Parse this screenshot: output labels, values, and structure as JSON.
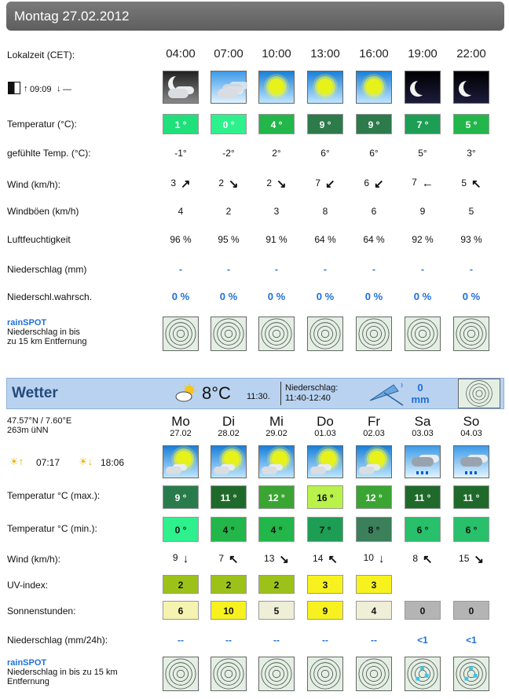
{
  "header": {
    "title": "Montag 27.02.2012"
  },
  "hourly": {
    "time_label": "Lokalzeit (CET):",
    "times": [
      "04:00",
      "07:00",
      "10:00",
      "13:00",
      "16:00",
      "19:00",
      "22:00"
    ],
    "moon": {
      "rise": "09:09",
      "set": "—"
    },
    "icons": [
      "night-cloudy",
      "cloudy",
      "sunny",
      "sunny",
      "sunny",
      "night-clear",
      "night-clear"
    ],
    "temp_label": "Temperatur (°C):",
    "temps": [
      "1 °",
      "0 °",
      "4 °",
      "9 °",
      "9 °",
      "7 °",
      "5 °"
    ],
    "temp_colors": [
      "#1fe07a",
      "#2ef08d",
      "#23b64a",
      "#2d7a4a",
      "#2d7a4a",
      "#1e9e55",
      "#23b64a"
    ],
    "feels_label": "gefühlte Temp. (°C):",
    "feels": [
      "-1°",
      "-2°",
      "2°",
      "6°",
      "6°",
      "5°",
      "3°"
    ],
    "wind_label": "Wind (km/h):",
    "wind": [
      "3",
      "2",
      "2",
      "7",
      "6",
      "7",
      "5"
    ],
    "wind_dirs": [
      "↗",
      "↘",
      "↘",
      "↙",
      "↙",
      "←",
      "↖"
    ],
    "gust_label": "Windböen (km/h)",
    "gusts": [
      "4",
      "2",
      "3",
      "8",
      "6",
      "9",
      "5"
    ],
    "humidity_label": "Luftfeuchtigkeit",
    "humidity": [
      "96 %",
      "95 %",
      "91 %",
      "64 %",
      "64 %",
      "92 %",
      "93 %"
    ],
    "precip_label": "Niederschlag (mm)",
    "precip": [
      "-",
      "-",
      "-",
      "-",
      "-",
      "-",
      "-"
    ],
    "prob_label": "Niederschl.wahrsch.",
    "prob": [
      "0 %",
      "0 %",
      "0 %",
      "0 %",
      "0 %",
      "0 %",
      "0 %"
    ],
    "rainspot": {
      "title": "rainSPOT",
      "line1": "Niederschlag in bis",
      "line2": "zu 15 km Entfernung"
    }
  },
  "weather": {
    "title": "Wetter",
    "current_temp": "8°C",
    "current_time": "11:30.",
    "precip_label": "Niederschlag:",
    "precip_time": "11:40-12:40",
    "precip_amount": "0",
    "precip_unit": "mm",
    "coords": "47.57°N / 7.60°E",
    "elevation": "263m üNN",
    "sunrise": "07:17",
    "sunset": "18:06",
    "days": [
      {
        "name": "Mo",
        "date": "27.02"
      },
      {
        "name": "Di",
        "date": "28.02"
      },
      {
        "name": "Mi",
        "date": "29.02"
      },
      {
        "name": "Do",
        "date": "01.03"
      },
      {
        "name": "Fr",
        "date": "02.03"
      },
      {
        "name": "Sa",
        "date": "03.03"
      },
      {
        "name": "So",
        "date": "04.03"
      }
    ],
    "icons": [
      "sunny-cloud",
      "sunny-cloud",
      "sunny-cloud",
      "sunny-cloud",
      "sunny-cloud",
      "rain",
      "rain"
    ],
    "tmax_label": "Temperatur °C (max.):",
    "tmax": [
      "9 °",
      "11 °",
      "12 °",
      "16 °",
      "12 °",
      "11 °",
      "11 °"
    ],
    "tmax_colors": [
      "#2a7b4c",
      "#1f6a2a",
      "#3aa532",
      "#b8f24a",
      "#3aa532",
      "#1f6a2a",
      "#1f6a2a"
    ],
    "tmin_label": "Temperatur °C (min.):",
    "tmin": [
      "0 °",
      "4 °",
      "4 °",
      "7 °",
      "8 °",
      "6 °",
      "6 °"
    ],
    "tmin_colors": [
      "#2ef08d",
      "#23b64a",
      "#23b64a",
      "#1e9e55",
      "#3b7f5b",
      "#28c06a",
      "#28c06a"
    ],
    "wind_label": "Wind (km/h):",
    "wind": [
      "9",
      "7",
      "13",
      "14",
      "10",
      "8",
      "15"
    ],
    "wind_dirs": [
      "↓",
      "↖",
      "↘",
      "↖",
      "↓",
      "↖",
      "↘"
    ],
    "uv_label": "UV-index:",
    "uv": [
      "2",
      "2",
      "2",
      "3",
      "3",
      "",
      ""
    ],
    "uv_colors": [
      "#9cc21a",
      "#9cc21a",
      "#9cc21a",
      "#f7f21f",
      "#f7f21f",
      "",
      ""
    ],
    "sun_label": "Sonnenstunden:",
    "sun": [
      "6",
      "10",
      "5",
      "9",
      "4",
      "0",
      "0"
    ],
    "sun_colors": [
      "#f6f3b0",
      "#f7f21f",
      "#efeed6",
      "#f7f21f",
      "#efeed6",
      "#b4b4b4",
      "#b4b4b4"
    ],
    "precip24_label": "Niederschlag (mm/24h):",
    "precip24": [
      "--",
      "--",
      "--",
      "--",
      "--",
      "<1",
      "<1"
    ],
    "rainspot": {
      "title": "rainSPOT",
      "line1": "Niederschlag in bis zu 15 km",
      "line2": "Entfernung"
    }
  }
}
